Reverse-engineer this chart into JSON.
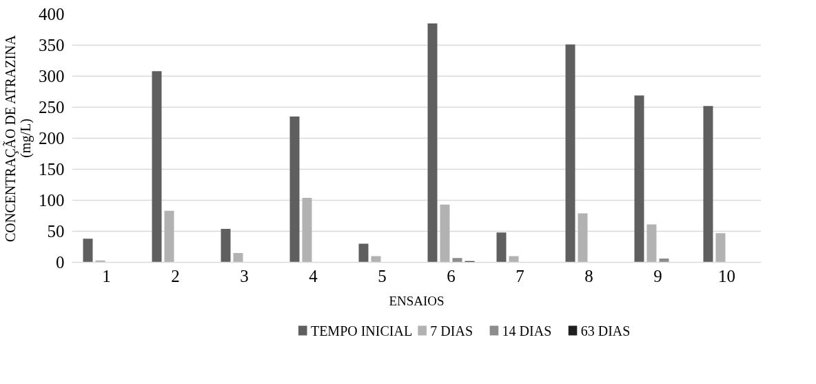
{
  "chart_data": {
    "type": "bar",
    "xlabel": "ENSAIOS",
    "ylabel": "CONCENTRAÇÃO DE ATRAZINA\n(mg/L)",
    "categories": [
      "1",
      "2",
      "3",
      "4",
      "5",
      "6",
      "7",
      "8",
      "9",
      "10"
    ],
    "series": [
      {
        "name": "TEMPO INICIAL",
        "color": "#5f5f5f",
        "values": [
          38,
          308,
          54,
          235,
          30,
          385,
          48,
          351,
          269,
          252
        ]
      },
      {
        "name": "7 DIAS",
        "color": "#b2b2b2",
        "values": [
          3,
          83,
          15,
          104,
          10,
          93,
          10,
          79,
          61,
          47
        ]
      },
      {
        "name": "14 DIAS",
        "color": "#8c8c8c",
        "values": [
          0,
          0,
          0,
          0,
          0,
          7,
          0,
          0,
          6,
          0
        ]
      },
      {
        "name": "63 DIAS",
        "color": "#1f1f1f",
        "values": [
          0,
          0,
          0,
          0,
          0,
          2,
          0,
          0,
          0,
          0
        ]
      }
    ],
    "ylim": [
      0,
      400
    ],
    "yticks": [
      0,
      50,
      100,
      150,
      200,
      250,
      300,
      350,
      400
    ],
    "grid": "y",
    "legend": "bottom"
  }
}
